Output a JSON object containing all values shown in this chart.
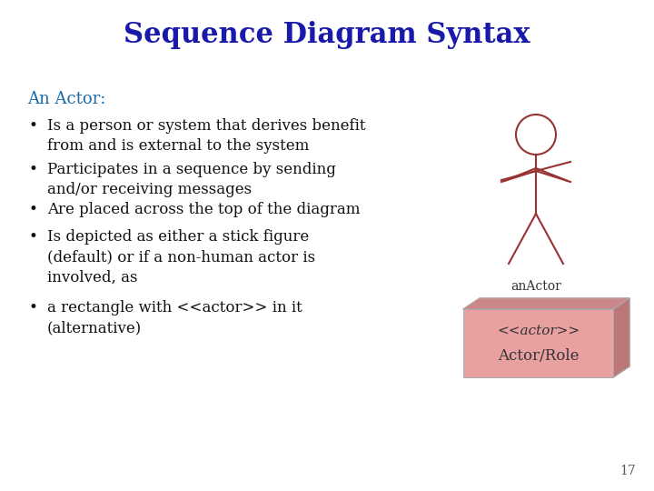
{
  "title": "Sequence Diagram Syntax",
  "title_color": "#1a1aaa",
  "title_fontsize": 22,
  "background_color": "#ffffff",
  "subtitle": "An Actor:",
  "subtitle_color": "#1a6aaa",
  "subtitle_fontsize": 13,
  "bullets": [
    "Is a person or system that derives benefit\nfrom and is external to the system",
    "Participates in a sequence by sending\nand/or receiving messages",
    "Are placed across the top of the diagram",
    "Is depicted as either a stick figure\n(default) or if a non-human actor is\ninvolved, as",
    "a rectangle with <<actor>> in it\n(alternative)"
  ],
  "bullet_color": "#111111",
  "bullet_fontsize": 12,
  "actor_color": "#993333",
  "actor_label": "anActor",
  "actor_label_color": "#333333",
  "actor_label_fontsize": 10,
  "box_face_color": "#e8a0a0",
  "box_top_color": "#cc8888",
  "box_side_color": "#bb7777",
  "box_line1": "<<actor>>",
  "box_line2": "Actor/Role",
  "box_text_color": "#333333",
  "page_number": "17",
  "page_number_color": "#555555",
  "page_number_fontsize": 10
}
